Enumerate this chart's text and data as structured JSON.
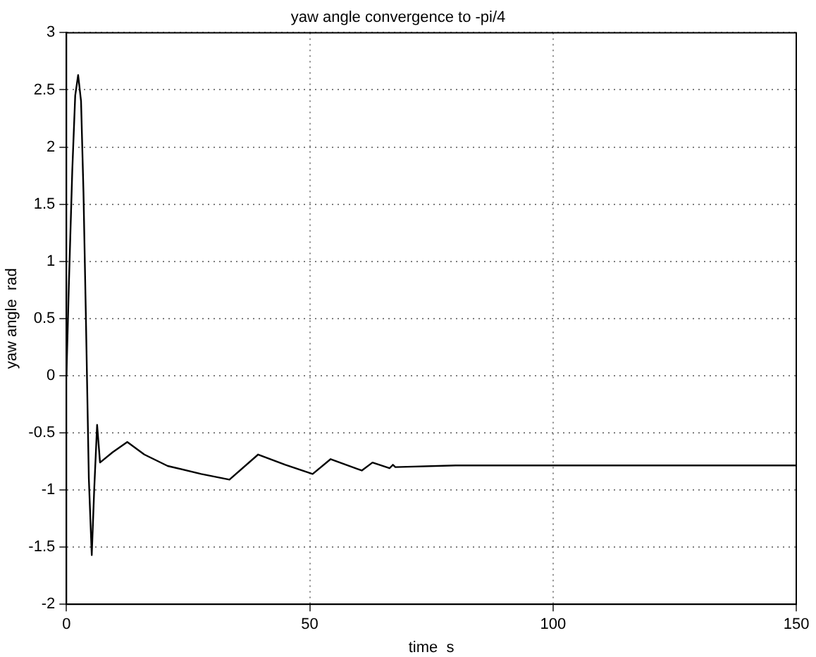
{
  "chart_data": {
    "type": "line",
    "title": "yaw angle convergence to -pi/4",
    "xlabel": "time  s",
    "ylabel": "yaw angle  rad",
    "xlim": [
      0,
      150
    ],
    "xticks": [
      0,
      50,
      100,
      150
    ],
    "ylim": [
      -2,
      3
    ],
    "yticks": [
      -2,
      -1.5,
      -1,
      -0.5,
      0,
      0.5,
      1,
      1.5,
      2,
      2.5,
      3
    ],
    "grid": true,
    "legend": false,
    "marker": "none",
    "line_style": "solid",
    "series": [
      {
        "color": "#000000",
        "x": [
          0,
          0.5,
          1.2,
          1.8,
          2.4,
          3.0,
          3.5,
          4.0,
          4.6,
          5.2,
          5.7,
          6.3,
          6.9,
          9.5,
          12.5,
          16,
          20.8,
          27.7,
          33.5,
          39.4,
          45,
          50.6,
          54.3,
          60.7,
          62.9,
          66.4,
          67.1,
          67.6,
          80,
          100,
          150
        ],
        "values": [
          0,
          0.8,
          1.8,
          2.45,
          2.63,
          2.4,
          1.6,
          0.5,
          -0.9,
          -1.57,
          -1.0,
          -0.43,
          -0.76,
          -0.67,
          -0.58,
          -0.69,
          -0.79,
          -0.86,
          -0.91,
          -0.69,
          -0.78,
          -0.86,
          -0.73,
          -0.83,
          -0.76,
          -0.81,
          -0.78,
          -0.8,
          -0.785,
          -0.785,
          -0.785
        ]
      }
    ]
  }
}
